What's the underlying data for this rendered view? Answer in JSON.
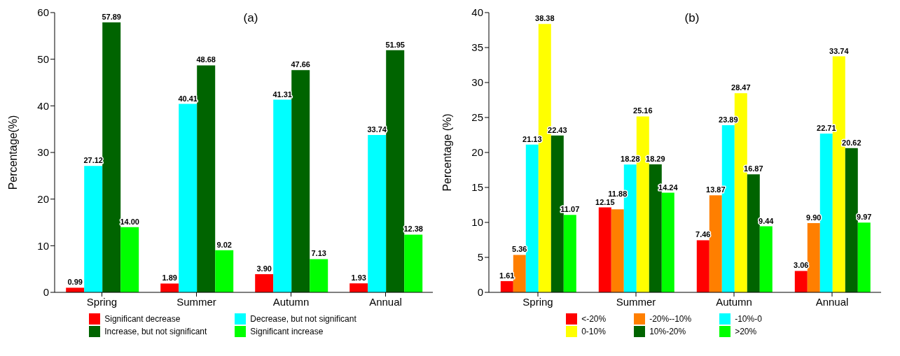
{
  "chart_data": [
    {
      "type": "bar",
      "title": "(a)",
      "ylabel": "Percentage(%)",
      "categories": [
        "Spring",
        "Summer",
        "Autumn",
        "Annual"
      ],
      "ylim": [
        0,
        60
      ],
      "yticks": [
        0,
        10,
        20,
        30,
        40,
        50,
        60
      ],
      "grid": false,
      "legend": "bottom",
      "series": [
        {
          "name": "Significant decrease",
          "color": "#ff0000",
          "values": [
            0.99,
            1.89,
            3.9,
            1.93
          ],
          "value_labels": [
            "0.99",
            "1.89",
            "3.90",
            "1.93"
          ]
        },
        {
          "name": "Decrease, but not significant",
          "color": "#00ffff",
          "values": [
            27.12,
            40.41,
            41.31,
            33.74
          ],
          "value_labels": [
            "27.12",
            "40.41",
            "41.31",
            "33.74"
          ]
        },
        {
          "name": "Increase, but not significant",
          "color": "#006400",
          "values": [
            57.89,
            48.68,
            47.66,
            51.95
          ],
          "value_labels": [
            "57.89",
            "48.68",
            "47.66",
            "51.95"
          ]
        },
        {
          "name": "Significant increase",
          "color": "#00ff00",
          "values": [
            14.0,
            9.02,
            7.13,
            12.38
          ],
          "value_labels": [
            "14.00",
            "9.02",
            "7.13",
            "12.38"
          ]
        }
      ]
    },
    {
      "type": "bar",
      "title": "(b)",
      "ylabel": "Percentage (%)",
      "categories": [
        "Spring",
        "Summer",
        "Autumn",
        "Annual"
      ],
      "ylim": [
        0,
        40
      ],
      "yticks": [
        0,
        5,
        10,
        15,
        20,
        25,
        30,
        35,
        40
      ],
      "grid": false,
      "legend": "bottom",
      "series": [
        {
          "name": "<-20%",
          "color": "#ff0000",
          "values": [
            1.61,
            12.15,
            7.46,
            3.06
          ],
          "value_labels": [
            "1.61",
            "12.15",
            "7.46",
            "3.06"
          ]
        },
        {
          "name": "-20%--10%",
          "color": "#ff7f00",
          "values": [
            5.36,
            11.88,
            13.87,
            9.9
          ],
          "value_labels": [
            "5.36",
            "11.88",
            "13.87",
            "9.90"
          ]
        },
        {
          "name": "-10%-0",
          "color": "#00ffff",
          "values": [
            21.13,
            18.28,
            23.89,
            22.71
          ],
          "value_labels": [
            "21.13",
            "18.28",
            "23.89",
            "22.71"
          ]
        },
        {
          "name": "0-10%",
          "color": "#ffff00",
          "values": [
            38.38,
            25.16,
            28.47,
            33.74
          ],
          "value_labels": [
            "38.38",
            "25.16",
            "28.47",
            "33.74"
          ]
        },
        {
          "name": "10%-20%",
          "color": "#006400",
          "values": [
            22.43,
            18.29,
            16.87,
            20.62
          ],
          "value_labels": [
            "22.43",
            "18.29",
            "16.87",
            "20.62"
          ]
        },
        {
          "name": ">20%",
          "color": "#00ff00",
          "values": [
            11.07,
            14.24,
            9.44,
            9.97
          ],
          "value_labels": [
            "11.07",
            "14.24",
            "9.44",
            "9.97"
          ]
        }
      ]
    }
  ]
}
